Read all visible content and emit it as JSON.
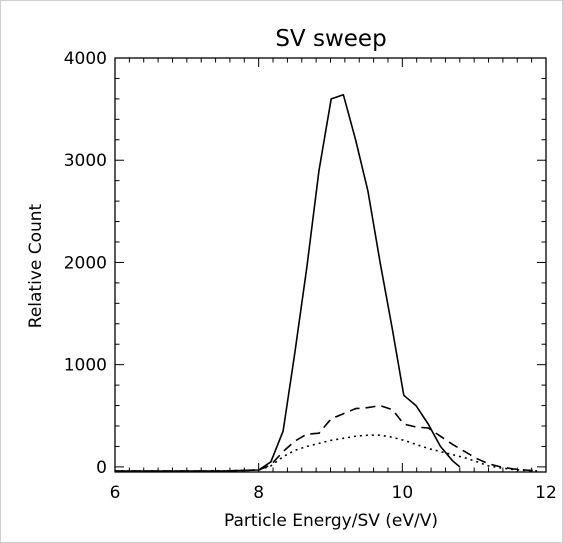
{
  "chart_data": {
    "type": "line",
    "title": "SV sweep",
    "xlabel": "Particle Energy/SV (eV/V)",
    "ylabel": "Relative Count",
    "xlim": [
      6,
      12
    ],
    "ylim": [
      -50,
      4000
    ],
    "xticks": [
      6,
      8,
      10,
      12
    ],
    "yticks": [
      0,
      1000,
      2000,
      3000,
      4000
    ],
    "x_tick_labels": [
      "6",
      "8",
      "10",
      "12"
    ],
    "y_tick_labels": [
      "0",
      "1000",
      "2000",
      "3000",
      "4000"
    ],
    "grid": false,
    "legend": "none",
    "series": [
      {
        "style": "solid",
        "color": "#000000",
        "x": [
          6.0,
          6.5,
          7.0,
          7.5,
          8.0,
          8.17,
          8.34,
          8.5,
          8.67,
          8.84,
          9.01,
          9.18,
          9.35,
          9.52,
          9.69,
          9.86,
          10.02,
          10.19,
          10.36,
          10.53,
          10.7,
          10.8
        ],
        "y": [
          -40,
          -40,
          -40,
          -40,
          -30,
          50,
          350,
          1100,
          1950,
          2900,
          3600,
          3640,
          3200,
          2700,
          2000,
          1350,
          700,
          600,
          420,
          200,
          60,
          0
        ]
      },
      {
        "style": "dashed",
        "color": "#000000",
        "x": [
          6.0,
          6.5,
          7.0,
          7.5,
          8.0,
          8.17,
          8.34,
          8.5,
          8.67,
          8.84,
          9.01,
          9.18,
          9.35,
          9.52,
          9.69,
          9.86,
          10.02,
          10.19,
          10.36,
          10.53,
          10.7,
          10.87,
          11.04,
          11.2,
          11.37,
          11.54,
          11.71,
          11.9
        ],
        "y": [
          -40,
          -40,
          -40,
          -40,
          -30,
          20,
          150,
          250,
          320,
          330,
          470,
          520,
          570,
          580,
          600,
          560,
          420,
          390,
          380,
          300,
          220,
          150,
          80,
          30,
          0,
          -20,
          -30,
          -40
        ]
      },
      {
        "style": "dotted",
        "color": "#000000",
        "x": [
          6.0,
          6.5,
          7.0,
          7.5,
          8.0,
          8.17,
          8.34,
          8.5,
          8.67,
          8.84,
          9.01,
          9.18,
          9.35,
          9.52,
          9.69,
          9.86,
          10.02,
          10.19,
          10.36,
          10.53,
          10.7,
          10.87,
          11.04,
          11.2,
          11.37,
          11.54,
          11.71,
          11.9
        ],
        "y": [
          -40,
          -40,
          -40,
          -40,
          -30,
          10,
          100,
          160,
          200,
          230,
          260,
          280,
          300,
          310,
          310,
          290,
          260,
          220,
          180,
          150,
          120,
          90,
          50,
          10,
          -10,
          -25,
          -35,
          -40
        ]
      }
    ]
  }
}
